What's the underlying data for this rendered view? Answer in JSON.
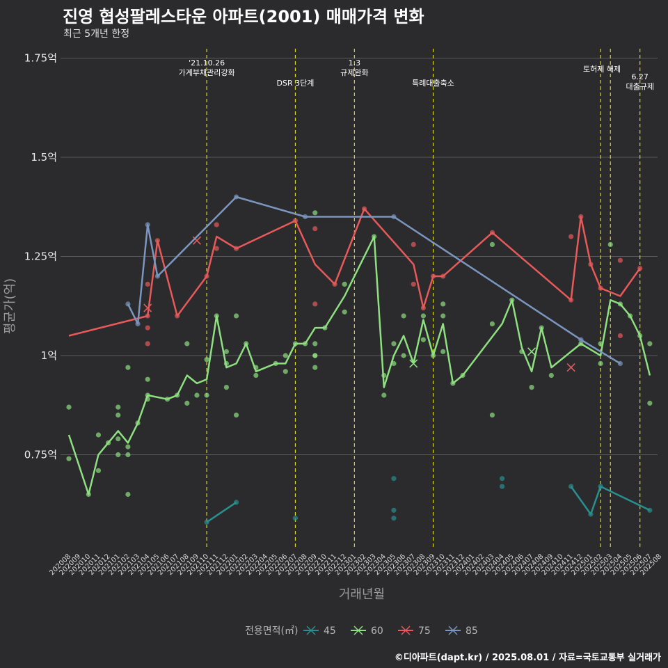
{
  "header": {
    "title": "진영 협성팔레스타운 아파트(2001) 매매가격 변화",
    "subtitle": "최근 5개년 한정",
    "source": "©디아파트(dapt.kr) / 2025.08.01 / 자료=국토교통부 실거래가"
  },
  "chart_data": {
    "type": "line",
    "title": "진영 협성팔레스타운 아파트(2001) 매매가격 변화",
    "subtitle": "최근 5개년 한정",
    "xlabel": "거래년월",
    "ylabel": "평균가(억)",
    "ylim": [
      0.48,
      1.77
    ],
    "grid": true,
    "legend_position": "bottom",
    "legend_title": "전용면적(㎡)",
    "yticks": [
      {
        "value": 0.75,
        "label": "0.75억"
      },
      {
        "value": 1.0,
        "label": "1억"
      },
      {
        "value": 1.25,
        "label": "1.25억"
      },
      {
        "value": 1.5,
        "label": "1.5억"
      },
      {
        "value": 1.75,
        "label": "1.75억"
      }
    ],
    "x": [
      "202008",
      "202009",
      "202010",
      "202011",
      "202012",
      "202101",
      "202102",
      "202103",
      "202104",
      "202105",
      "202106",
      "202107",
      "202108",
      "202109",
      "202110",
      "202111",
      "202112",
      "202201",
      "202202",
      "202203",
      "202204",
      "202205",
      "202206",
      "202207",
      "202208",
      "202209",
      "202210",
      "202211",
      "202212",
      "202301",
      "202302",
      "202303",
      "202304",
      "202305",
      "202306",
      "202307",
      "202308",
      "202309",
      "202310",
      "202311",
      "202312",
      "202401",
      "202402",
      "202403",
      "202404",
      "202405",
      "202406",
      "202407",
      "202408",
      "202409",
      "202410",
      "202411",
      "202412",
      "202501",
      "202502",
      "202503",
      "202504",
      "202505",
      "202506",
      "202507",
      "202508"
    ],
    "annotations": [
      {
        "x": "202110",
        "lines": [
          "'21.10.26",
          "가계부채관리강화"
        ]
      },
      {
        "x": "202207",
        "lines": [
          "DSR 3단계"
        ]
      },
      {
        "x": "202301",
        "lines": [
          "1.3",
          "규제완화"
        ]
      },
      {
        "x": "202309",
        "lines": [
          "특례대출축소"
        ]
      },
      {
        "x": "202502",
        "lines": [
          "토허제 해제"
        ]
      },
      {
        "x": "202503",
        "lines": []
      },
      {
        "x": "202506",
        "lines": [
          "6.27",
          "대출규제"
        ]
      }
    ],
    "series": [
      {
        "name": "45",
        "color": "#2a8f8f",
        "line": [
          [
            "202110",
            0.58
          ],
          [
            "202201",
            0.63
          ]
        ],
        "points": [
          [
            "202110",
            0.58
          ],
          [
            "202201",
            0.63
          ],
          [
            "202207",
            0.59
          ],
          [
            "202305",
            0.69
          ],
          [
            "202305",
            0.61
          ],
          [
            "202305",
            0.59
          ],
          [
            "202404",
            0.69
          ],
          [
            "202404",
            0.67
          ],
          [
            "202411",
            0.67
          ],
          [
            "202501",
            0.6
          ],
          [
            "202502",
            0.67
          ],
          [
            "202507",
            0.61
          ]
        ],
        "line2": [
          [
            "202411",
            0.67
          ],
          [
            "202501",
            0.6
          ],
          [
            "202502",
            0.67
          ],
          [
            "202507",
            0.61
          ]
        ],
        "crosses": []
      },
      {
        "name": "60",
        "color": "#8ee080",
        "line": [
          [
            "202008",
            0.8
          ],
          [
            "202010",
            0.65
          ],
          [
            "202011",
            0.75
          ],
          [
            "202012",
            0.78
          ],
          [
            "202101",
            0.81
          ],
          [
            "202102",
            0.78
          ],
          [
            "202103",
            0.83
          ],
          [
            "202104",
            0.9
          ],
          [
            "202106",
            0.89
          ],
          [
            "202107",
            0.9
          ],
          [
            "202108",
            0.95
          ],
          [
            "202109",
            0.93
          ],
          [
            "202110",
            0.94
          ],
          [
            "202111",
            1.1
          ],
          [
            "202112",
            0.97
          ],
          [
            "202201",
            0.98
          ],
          [
            "202202",
            1.03
          ],
          [
            "202203",
            0.96
          ],
          [
            "202205",
            0.98
          ],
          [
            "202206",
            0.98
          ],
          [
            "202207",
            1.03
          ],
          [
            "202208",
            1.03
          ],
          [
            "202209",
            1.07
          ],
          [
            "202210",
            1.07
          ],
          [
            "202212",
            1.15
          ],
          [
            "202303",
            1.3
          ],
          [
            "202304",
            0.92
          ],
          [
            "202305",
            1.0
          ],
          [
            "202306",
            1.05
          ],
          [
            "202307",
            0.98
          ],
          [
            "202308",
            1.09
          ],
          [
            "202309",
            1.0
          ],
          [
            "202310",
            1.08
          ],
          [
            "202311",
            0.93
          ],
          [
            "202312",
            0.95
          ],
          [
            "202404",
            1.08
          ],
          [
            "202405",
            1.14
          ],
          [
            "202406",
            1.02
          ],
          [
            "202407",
            0.96
          ],
          [
            "202408",
            1.07
          ],
          [
            "202409",
            0.97
          ],
          [
            "202412",
            1.03
          ],
          [
            "202502",
            1.0
          ],
          [
            "202503",
            1.14
          ],
          [
            "202504",
            1.13
          ],
          [
            "202505",
            1.1
          ],
          [
            "202506",
            1.05
          ],
          [
            "202507",
            0.95
          ]
        ],
        "points": [
          [
            "202008",
            0.87
          ],
          [
            "202008",
            0.74
          ],
          [
            "202010",
            0.65
          ],
          [
            "202011",
            0.8
          ],
          [
            "202011",
            0.71
          ],
          [
            "202012",
            0.78
          ],
          [
            "202101",
            0.87
          ],
          [
            "202101",
            0.85
          ],
          [
            "202101",
            0.79
          ],
          [
            "202101",
            0.75
          ],
          [
            "202102",
            0.97
          ],
          [
            "202102",
            0.77
          ],
          [
            "202102",
            0.75
          ],
          [
            "202102",
            0.65
          ],
          [
            "202103",
            0.83
          ],
          [
            "202104",
            0.94
          ],
          [
            "202104",
            0.9
          ],
          [
            "202104",
            0.89
          ],
          [
            "202106",
            0.89
          ],
          [
            "202107",
            0.9
          ],
          [
            "202108",
            1.03
          ],
          [
            "202108",
            0.88
          ],
          [
            "202109",
            0.9
          ],
          [
            "202110",
            0.99
          ],
          [
            "202110",
            0.9
          ],
          [
            "202111",
            1.1
          ],
          [
            "202112",
            1.01
          ],
          [
            "202112",
            0.98
          ],
          [
            "202112",
            0.92
          ],
          [
            "202201",
            1.1
          ],
          [
            "202201",
            0.85
          ],
          [
            "202202",
            1.03
          ],
          [
            "202203",
            0.97
          ],
          [
            "202203",
            0.95
          ],
          [
            "202205",
            0.98
          ],
          [
            "202206",
            1.0
          ],
          [
            "202206",
            0.96
          ],
          [
            "202207",
            1.03
          ],
          [
            "202208",
            1.03
          ],
          [
            "202209",
            1.36
          ],
          [
            "202209",
            1.03
          ],
          [
            "202209",
            1.0
          ],
          [
            "202209",
            1.0
          ],
          [
            "202209",
            0.97
          ],
          [
            "202210",
            1.07
          ],
          [
            "202212",
            1.18
          ],
          [
            "202212",
            1.11
          ],
          [
            "202303",
            1.3
          ],
          [
            "202304",
            0.95
          ],
          [
            "202304",
            0.9
          ],
          [
            "202305",
            1.03
          ],
          [
            "202305",
            0.98
          ],
          [
            "202306",
            1.1
          ],
          [
            "202306",
            1.0
          ],
          [
            "202308",
            1.1
          ],
          [
            "202308",
            1.04
          ],
          [
            "202309",
            1.0
          ],
          [
            "202310",
            1.13
          ],
          [
            "202310",
            1.1
          ],
          [
            "202310",
            1.01
          ],
          [
            "202311",
            0.93
          ],
          [
            "202312",
            0.95
          ],
          [
            "202403",
            1.28
          ],
          [
            "202403",
            1.08
          ],
          [
            "202403",
            0.85
          ],
          [
            "202405",
            1.14
          ],
          [
            "202406",
            1.01
          ],
          [
            "202407",
            0.92
          ],
          [
            "202408",
            1.07
          ],
          [
            "202409",
            0.95
          ],
          [
            "202412",
            1.03
          ],
          [
            "202502",
            1.03
          ],
          [
            "202502",
            0.98
          ],
          [
            "202503",
            1.28
          ],
          [
            "202504",
            1.13
          ],
          [
            "202505",
            1.1
          ],
          [
            "202506",
            1.05
          ],
          [
            "202507",
            1.03
          ],
          [
            "202507",
            0.88
          ]
        ],
        "crosses": [
          [
            "202307",
            0.98
          ],
          [
            "202407",
            1.01
          ]
        ]
      },
      {
        "name": "75",
        "color": "#e85a5a",
        "line": [
          [
            "202008",
            1.05
          ],
          [
            "202104",
            1.1
          ],
          [
            "202105",
            1.29
          ],
          [
            "202107",
            1.1
          ],
          [
            "202110",
            1.2
          ],
          [
            "202111",
            1.3
          ],
          [
            "202201",
            1.27
          ],
          [
            "202207",
            1.34
          ],
          [
            "202209",
            1.23
          ],
          [
            "202211",
            1.18
          ],
          [
            "202302",
            1.37
          ],
          [
            "202307",
            1.23
          ],
          [
            "202308",
            1.12
          ],
          [
            "202309",
            1.2
          ],
          [
            "202310",
            1.2
          ],
          [
            "202403",
            1.31
          ],
          [
            "202411",
            1.14
          ],
          [
            "202412",
            1.35
          ],
          [
            "202501",
            1.23
          ],
          [
            "202502",
            1.17
          ],
          [
            "202504",
            1.15
          ],
          [
            "202506",
            1.22
          ]
        ],
        "points": [
          [
            "202104",
            1.18
          ],
          [
            "202104",
            1.1
          ],
          [
            "202104",
            1.07
          ],
          [
            "202104",
            1.03
          ],
          [
            "202105",
            1.29
          ],
          [
            "202107",
            1.1
          ],
          [
            "202110",
            1.2
          ],
          [
            "202111",
            1.33
          ],
          [
            "202111",
            1.27
          ],
          [
            "202201",
            1.27
          ],
          [
            "202207",
            1.34
          ],
          [
            "202209",
            1.32
          ],
          [
            "202209",
            1.13
          ],
          [
            "202211",
            1.18
          ],
          [
            "202302",
            1.37
          ],
          [
            "202307",
            1.28
          ],
          [
            "202307",
            1.18
          ],
          [
            "202308",
            1.12
          ],
          [
            "202309",
            1.2
          ],
          [
            "202310",
            1.2
          ],
          [
            "202403",
            1.31
          ],
          [
            "202411",
            1.3
          ],
          [
            "202411",
            1.14
          ],
          [
            "202412",
            1.35
          ],
          [
            "202501",
            1.23
          ],
          [
            "202502",
            1.17
          ],
          [
            "202504",
            1.24
          ],
          [
            "202504",
            1.05
          ],
          [
            "202506",
            1.22
          ]
        ],
        "crosses": [
          [
            "202104",
            1.12
          ],
          [
            "202109",
            1.29
          ],
          [
            "202411",
            0.97
          ]
        ]
      },
      {
        "name": "85",
        "color": "#7b96bf",
        "line": [
          [
            "202102",
            1.13
          ],
          [
            "202103",
            1.08
          ],
          [
            "202104",
            1.33
          ],
          [
            "202105",
            1.2
          ],
          [
            "202201",
            1.4
          ],
          [
            "202208",
            1.35
          ],
          [
            "202305",
            1.35
          ],
          [
            "202412",
            1.04
          ],
          [
            "202504",
            0.98
          ]
        ],
        "points": [
          [
            "202102",
            1.13
          ],
          [
            "202103",
            1.08
          ],
          [
            "202104",
            1.33
          ],
          [
            "202105",
            1.2
          ],
          [
            "202201",
            1.4
          ],
          [
            "202208",
            1.35
          ],
          [
            "202305",
            1.35
          ],
          [
            "202412",
            1.04
          ],
          [
            "202504",
            0.98
          ]
        ],
        "crosses": []
      }
    ]
  }
}
